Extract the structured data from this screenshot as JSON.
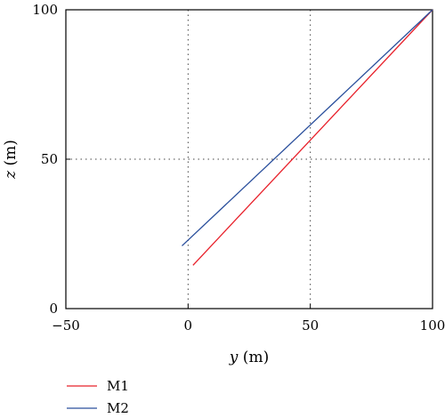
{
  "chart_data": {
    "type": "line",
    "title": "",
    "xlabel": {
      "var": "y",
      "unit": " (m)"
    },
    "ylabel": {
      "var": "z",
      "unit": " (m)"
    },
    "xlim": [
      -50,
      100
    ],
    "ylim": [
      0,
      100
    ],
    "xticks": [
      -50,
      0,
      50,
      100
    ],
    "yticks": [
      0,
      50,
      100
    ],
    "xtick_labels": [
      "−50",
      "0",
      "50",
      "100"
    ],
    "ytick_labels": [
      "0",
      "50",
      "100"
    ],
    "grid": {
      "style": "dotted",
      "x": [
        0,
        50
      ],
      "y": [
        50
      ]
    },
    "legend_placement": "bottom-left, below plot",
    "series": [
      {
        "name": "M1",
        "color": "#e8202a",
        "x": [
          2,
          100
        ],
        "y": [
          14.5,
          100
        ]
      },
      {
        "name": "M2",
        "color": "#2a4f9c",
        "x": [
          -2.5,
          100
        ],
        "y": [
          21,
          100
        ]
      }
    ]
  }
}
